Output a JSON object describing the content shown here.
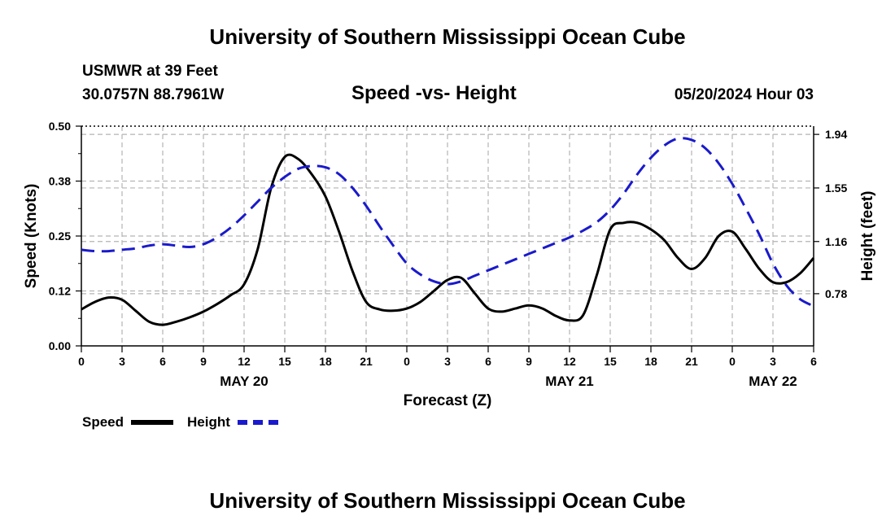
{
  "header": {
    "title": "University of Southern Mississippi Ocean Cube",
    "station": "USMWR at 39 Feet",
    "coords": "30.0757N  88.7961W",
    "subtitle": "Speed -vs- Height",
    "timestamp": "05/20/2024 Hour 03"
  },
  "footer": {
    "title": "University of Southern Mississippi Ocean Cube"
  },
  "legend": {
    "speed_label": "Speed",
    "height_label": "Height"
  },
  "colors": {
    "speed": "#000000",
    "height": "#1a1acc",
    "grid": "#b4b4b4"
  },
  "chart_data": {
    "type": "line",
    "title": "Speed -vs- Height",
    "xlabel": "Forecast (Z)",
    "ylabel": "Speed (Knots)",
    "y2label": "Height (feet)",
    "xlim": [
      0,
      54
    ],
    "ylim": [
      0,
      0.5
    ],
    "y2lim": [
      0.4,
      2.0
    ],
    "x_ticks": [
      0,
      3,
      6,
      9,
      12,
      15,
      18,
      21,
      24,
      27,
      30,
      33,
      36,
      39,
      42,
      45,
      48,
      51,
      54
    ],
    "x_tick_labels": [
      "0",
      "3",
      "6",
      "9",
      "12",
      "15",
      "18",
      "21",
      "0",
      "3",
      "6",
      "9",
      "12",
      "15",
      "18",
      "21",
      "0",
      "3",
      "6"
    ],
    "y_ticks": [
      0,
      0.125,
      0.25,
      0.375,
      0.5
    ],
    "y_tick_labels": [
      "0.00",
      "0.12",
      "0.25",
      "0.38",
      "0.50"
    ],
    "y2_ticks": [
      0.78,
      1.16,
      1.55,
      1.94
    ],
    "y2_tick_labels": [
      "0.78",
      "1.16",
      "1.55",
      "1.94"
    ],
    "date_labels": [
      {
        "x": 12,
        "label": "MAY 20"
      },
      {
        "x": 36,
        "label": "MAY 21"
      },
      {
        "x": 51,
        "label": "MAY 22"
      }
    ],
    "grid": true,
    "series": [
      {
        "name": "Speed",
        "axis": "left",
        "style": "solid",
        "x": [
          0,
          1,
          2,
          3,
          4,
          5,
          6,
          7,
          8,
          9,
          10,
          11,
          12,
          13,
          14,
          15,
          16,
          17,
          18,
          19,
          20,
          21,
          22,
          23,
          24,
          25,
          26,
          27,
          28,
          29,
          30,
          31,
          32,
          33,
          34,
          35,
          36,
          37,
          38,
          39,
          40,
          41,
          42,
          43,
          44,
          45,
          46,
          47,
          48,
          49,
          50,
          51,
          52,
          53,
          54
        ],
        "values": [
          0.083,
          0.1,
          0.11,
          0.105,
          0.08,
          0.055,
          0.048,
          0.055,
          0.065,
          0.078,
          0.095,
          0.115,
          0.14,
          0.22,
          0.36,
          0.43,
          0.425,
          0.39,
          0.34,
          0.26,
          0.17,
          0.1,
          0.083,
          0.08,
          0.085,
          0.1,
          0.125,
          0.15,
          0.155,
          0.12,
          0.085,
          0.078,
          0.085,
          0.092,
          0.085,
          0.068,
          0.058,
          0.07,
          0.16,
          0.265,
          0.28,
          0.28,
          0.265,
          0.24,
          0.2,
          0.175,
          0.2,
          0.25,
          0.26,
          0.22,
          0.175,
          0.145,
          0.145,
          0.165,
          0.2
        ]
      },
      {
        "name": "Height",
        "axis": "right",
        "style": "dashed",
        "x": [
          0,
          1,
          2,
          3,
          4,
          5,
          6,
          7,
          8,
          9,
          10,
          11,
          12,
          13,
          14,
          15,
          16,
          17,
          18,
          19,
          20,
          21,
          22,
          23,
          24,
          25,
          26,
          27,
          28,
          29,
          30,
          31,
          32,
          33,
          34,
          35,
          36,
          37,
          38,
          39,
          40,
          41,
          42,
          43,
          44,
          45,
          46,
          47,
          48,
          49,
          50,
          51,
          52,
          53,
          54
        ],
        "values": [
          1.1,
          1.09,
          1.09,
          1.1,
          1.11,
          1.13,
          1.14,
          1.13,
          1.12,
          1.14,
          1.19,
          1.26,
          1.35,
          1.45,
          1.55,
          1.63,
          1.69,
          1.71,
          1.7,
          1.65,
          1.55,
          1.42,
          1.27,
          1.13,
          1.0,
          0.92,
          0.87,
          0.85,
          0.87,
          0.91,
          0.95,
          0.99,
          1.03,
          1.07,
          1.11,
          1.15,
          1.19,
          1.24,
          1.3,
          1.39,
          1.51,
          1.65,
          1.77,
          1.86,
          1.91,
          1.9,
          1.84,
          1.73,
          1.58,
          1.4,
          1.21,
          1.0,
          0.84,
          0.74,
          0.69
        ]
      }
    ]
  }
}
